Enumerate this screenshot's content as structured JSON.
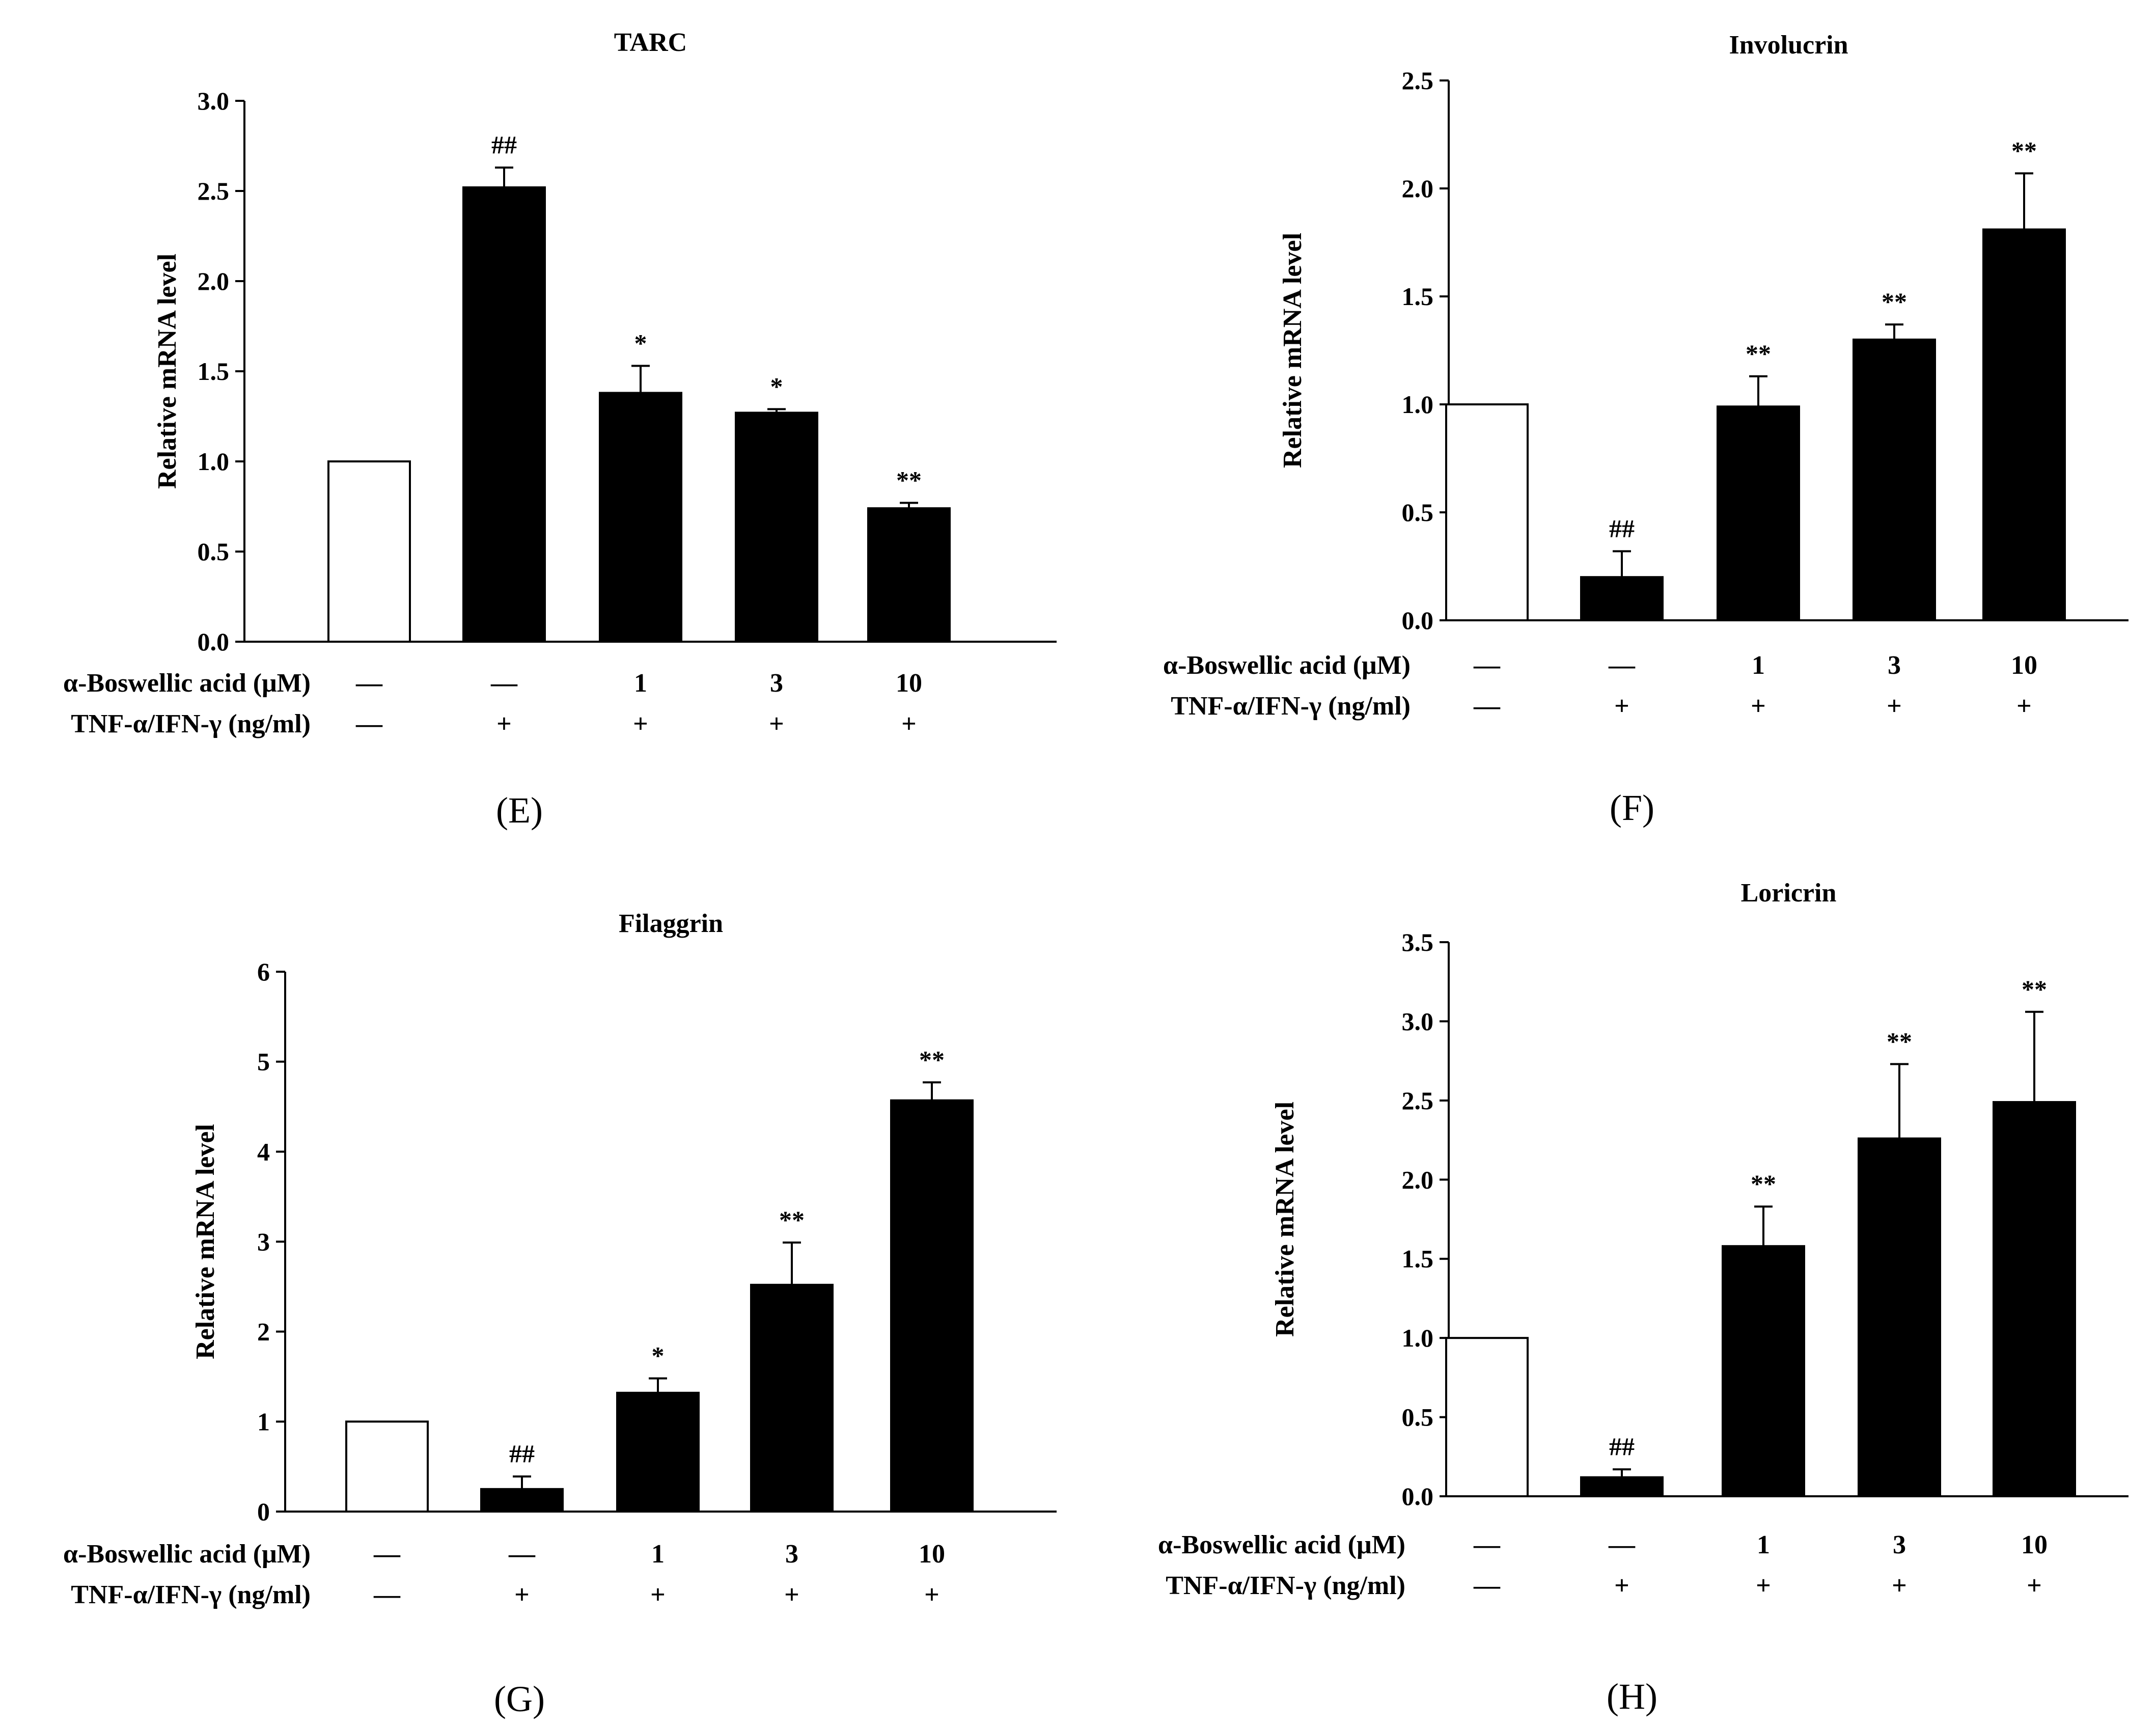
{
  "figure": {
    "row_labels": {
      "boswellic": "α-Boswellic acid (μM)",
      "tnf": "TNF-α/IFN-γ (ng/ml)"
    },
    "colors": {
      "control_fill": "#ffffff",
      "treated_fill": "#000000",
      "stroke": "#000000"
    }
  },
  "chart_data": [
    {
      "type": "bar",
      "panel": "(E)",
      "title": "TARC",
      "ylabel": "Relative mRNA level",
      "ylim": [
        0,
        3.0
      ],
      "yticks": [
        "0.0",
        "0.5",
        "1.0",
        "1.5",
        "2.0",
        "2.5",
        "3.0"
      ],
      "boswellic": [
        "—",
        "—",
        "1",
        "3",
        "10"
      ],
      "tnf": [
        "—",
        "+",
        "+",
        "+",
        "+"
      ],
      "values": [
        1.0,
        2.52,
        1.38,
        1.27,
        0.74
      ],
      "errors": [
        0,
        0.11,
        0.15,
        0.02,
        0.03
      ],
      "sig": [
        "",
        "##",
        "*",
        "*",
        "**"
      ]
    },
    {
      "type": "bar",
      "panel": "(F)",
      "title": "Involucrin",
      "ylabel": "Relative mRNA level",
      "ylim": [
        0,
        2.5
      ],
      "yticks": [
        "0.0",
        "0.5",
        "1.0",
        "1.5",
        "2.0",
        "2.5"
      ],
      "boswellic": [
        "—",
        "—",
        "1",
        "3",
        "10"
      ],
      "tnf": [
        "—",
        "+",
        "+",
        "+",
        "+"
      ],
      "values": [
        1.0,
        0.2,
        0.99,
        1.3,
        1.81
      ],
      "errors": [
        0,
        0.12,
        0.14,
        0.07,
        0.26
      ],
      "sig": [
        "",
        "##",
        "**",
        "**",
        "**"
      ]
    },
    {
      "type": "bar",
      "panel": "(G)",
      "title": "Filaggrin",
      "ylabel": "Relative mRNA level",
      "ylim": [
        0,
        6
      ],
      "yticks": [
        "0",
        "1",
        "2",
        "3",
        "4",
        "5",
        "6"
      ],
      "boswellic": [
        "—",
        "—",
        "1",
        "3",
        "10"
      ],
      "tnf": [
        "—",
        "+",
        "+",
        "+",
        "+"
      ],
      "values": [
        1.0,
        0.25,
        1.32,
        2.52,
        4.57
      ],
      "errors": [
        0,
        0.14,
        0.16,
        0.47,
        0.2
      ],
      "sig": [
        "",
        "##",
        "*",
        "**",
        "**"
      ]
    },
    {
      "type": "bar",
      "panel": "(H)",
      "title": "Loricrin",
      "ylabel": "Relative mRNA level",
      "ylim": [
        0,
        3.5
      ],
      "yticks": [
        "0.0",
        "0.5",
        "1.0",
        "1.5",
        "2.0",
        "2.5",
        "3.0",
        "3.5"
      ],
      "boswellic": [
        "—",
        "—",
        "1",
        "3",
        "10"
      ],
      "tnf": [
        "—",
        "+",
        "+",
        "+",
        "+"
      ],
      "values": [
        1.0,
        0.12,
        1.58,
        2.26,
        2.49
      ],
      "errors": [
        0,
        0.05,
        0.25,
        0.47,
        0.57
      ],
      "sig": [
        "",
        "##",
        "**",
        "**",
        "**"
      ]
    }
  ]
}
